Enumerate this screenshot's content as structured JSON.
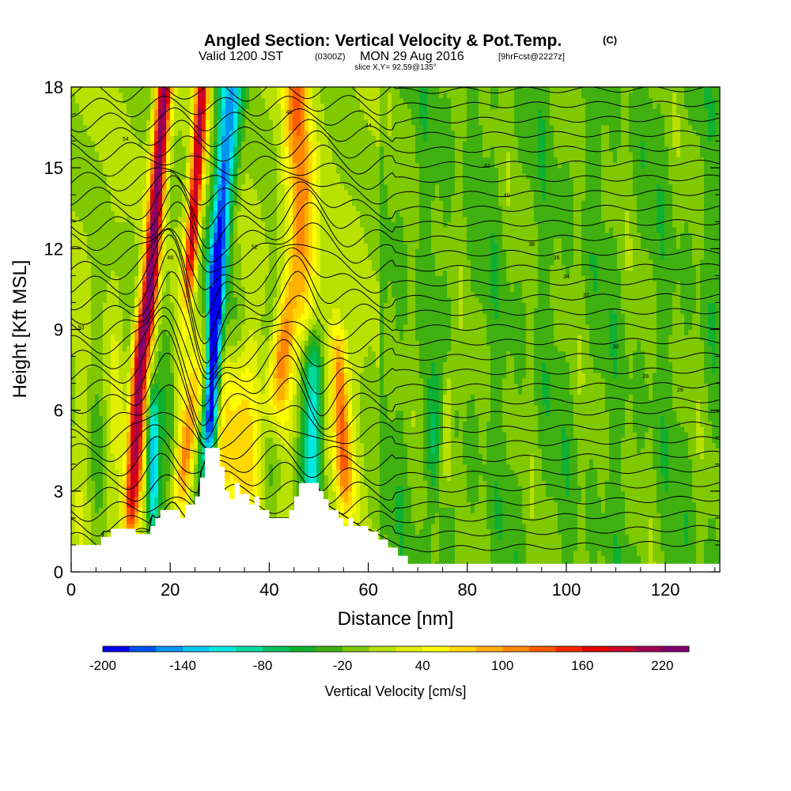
{
  "header": {
    "title": "Angled Section: Vertical Velocity & Pot.Temp.",
    "title_tag": "(C)",
    "valid_prefix": "Valid 1200 JST",
    "valid_zulu": "(0300Z)",
    "valid_date": "MON 29 Aug 2016",
    "valid_fcst": "[9hrFcst@2227z]",
    "slice": "slice X,Y= 92,59@135°"
  },
  "chart_data": {
    "type": "heatmap",
    "title": "Angled Section: Vertical Velocity & Pot.Temp.",
    "xlabel": "Distance [nm]",
    "ylabel": "Height [Kft MSL]",
    "xlim": [
      0,
      131
    ],
    "ylim": [
      0,
      18
    ],
    "x_ticks": [
      "0",
      "20",
      "40",
      "60",
      "80",
      "100",
      "120"
    ],
    "y_ticks": [
      "0",
      "3",
      "6",
      "9",
      "12",
      "15",
      "18"
    ],
    "colorbar": {
      "label": "Vertical Velocity [cm/s]",
      "tick_labels": [
        "-200",
        "-140",
        "-80",
        "-20",
        "40",
        "100",
        "160",
        "220"
      ],
      "min": -200,
      "max": 240,
      "step": 20,
      "colors": [
        "#0000f0",
        "#0050f0",
        "#0096f0",
        "#00c8f0",
        "#00e8e0",
        "#00d8a0",
        "#00c060",
        "#10b030",
        "#40b010",
        "#80c800",
        "#b8e000",
        "#e0f000",
        "#ffff00",
        "#ffd800",
        "#ffb000",
        "#ff8800",
        "#ff5a00",
        "#f02800",
        "#e00000",
        "#c80028",
        "#a00050",
        "#800070"
      ]
    },
    "features": [
      {
        "name": "updraft",
        "x": 13,
        "y_bottom": 2,
        "y_top": 9,
        "value": 180
      },
      {
        "name": "updraft",
        "x": 18,
        "y_bottom": 10,
        "y_top": 18,
        "value": 220
      },
      {
        "name": "updraft",
        "x": 26,
        "y_bottom": 12,
        "y_top": 18,
        "value": 180
      },
      {
        "name": "updraft",
        "x": 47,
        "y_bottom": 12,
        "y_top": 18,
        "value": 140
      },
      {
        "name": "downdraft",
        "x": 29,
        "y_bottom": 5,
        "y_top": 11,
        "value": -200
      },
      {
        "name": "downdraft",
        "x": 15,
        "y_bottom": 2,
        "y_top": 6,
        "value": -140
      },
      {
        "name": "downdraft",
        "x": 51,
        "y_bottom": 3,
        "y_top": 9,
        "value": -80
      }
    ],
    "isentropes_label": "Pot.Temp. (C)",
    "contour_labels": [
      "54",
      "52",
      "50",
      "48",
      "46",
      "44",
      "42",
      "40",
      "38",
      "36",
      "34",
      "32",
      "30",
      "28",
      "26"
    ]
  },
  "style": {
    "background_color": "#c8ec00",
    "terrain_color": "#ffffff",
    "contour_color": "#000000",
    "frame_color": "#000000"
  }
}
